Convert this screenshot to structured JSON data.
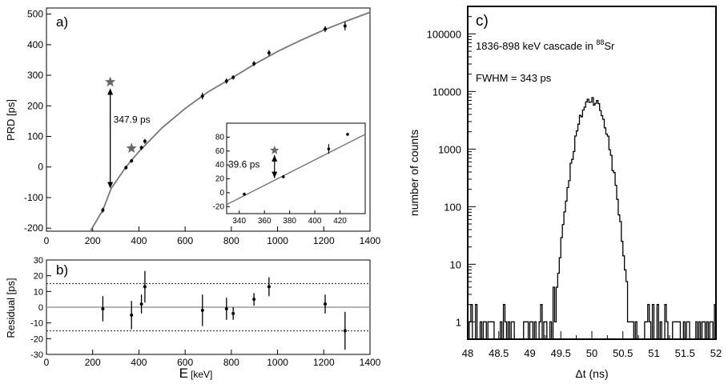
{
  "chart_data": [
    {
      "panel": "a",
      "type": "scatter",
      "panel_label": "a)",
      "ylabel": "PRD [ps]",
      "xlim": [
        0,
        1400
      ],
      "ylim": [
        -210,
        520
      ],
      "xticks": [
        0,
        200,
        400,
        600,
        800,
        1000,
        1200,
        1400
      ],
      "yticks": [
        -200,
        -100,
        0,
        100,
        200,
        300,
        400,
        500
      ],
      "points": [
        {
          "x": 244,
          "y": -141,
          "err": 8
        },
        {
          "x": 344,
          "y": -2,
          "err": 6
        },
        {
          "x": 368,
          "y": 20,
          "err": 6
        },
        {
          "x": 411,
          "y": 63,
          "err": 7
        },
        {
          "x": 426,
          "y": 84,
          "err": 8
        },
        {
          "x": 675,
          "y": 232,
          "err": 11
        },
        {
          "x": 779,
          "y": 281,
          "err": 9
        },
        {
          "x": 808,
          "y": 293,
          "err": 7
        },
        {
          "x": 898,
          "y": 338,
          "err": 8
        },
        {
          "x": 963,
          "y": 373,
          "err": 10
        },
        {
          "x": 1206,
          "y": 451,
          "err": 10
        },
        {
          "x": 1292,
          "y": 461,
          "err": 14
        }
      ],
      "stars": [
        {
          "x": 276,
          "y": 278
        },
        {
          "x": 368,
          "y": 61
        }
      ],
      "fit_curve": {
        "x": [
          190,
          215,
          244,
          280,
          344,
          400,
          500,
          600,
          700,
          800,
          900,
          1000,
          1100,
          1200,
          1300,
          1400
        ],
        "y": [
          -210,
          -178,
          -141,
          -70,
          0,
          50,
          128,
          191,
          246,
          290,
          336,
          378,
          414,
          448,
          478,
          506
        ]
      },
      "arrow": {
        "x": 276,
        "y_from": 278,
        "y_to": -70
      },
      "annotation": "347.9 ps"
    },
    {
      "panel": "a-inset",
      "type": "scatter",
      "xlim": [
        330,
        440
      ],
      "ylim": [
        -30,
        100
      ],
      "xticks": [
        340,
        360,
        380,
        400,
        420
      ],
      "yticks": [
        -20,
        0,
        20,
        40,
        60,
        80
      ],
      "points": [
        {
          "x": 344,
          "y": -2,
          "err": 2
        },
        {
          "x": 375,
          "y": 23,
          "err": 2
        },
        {
          "x": 411,
          "y": 63,
          "err": 7
        },
        {
          "x": 426,
          "y": 84,
          "err": 2
        }
      ],
      "stars": [
        {
          "x": 368,
          "y": 61
        }
      ],
      "fit_curve": {
        "x": [
          330,
          440
        ],
        "y": [
          -17,
          84
        ]
      },
      "arrow": {
        "x": 368,
        "y_from": 61,
        "y_to": 21
      },
      "annotation": "39.6 ps"
    },
    {
      "panel": "b",
      "type": "scatter",
      "panel_label": "b)",
      "ylabel": "Residual [ps]",
      "xlabel": "E",
      "xlabel_unit": "[keV]",
      "xlim": [
        0,
        1400
      ],
      "ylim": [
        -30,
        30
      ],
      "xticks": [
        0,
        200,
        400,
        600,
        800,
        1000,
        1200,
        1400
      ],
      "yticks": [
        -30,
        -20,
        -10,
        0,
        10,
        20,
        30
      ],
      "reference_lines": [
        15,
        -15
      ],
      "points": [
        {
          "x": 244,
          "y": -1,
          "err": 8
        },
        {
          "x": 368,
          "y": -5,
          "err": 9
        },
        {
          "x": 411,
          "y": 2,
          "err": 6
        },
        {
          "x": 426,
          "y": 13,
          "err": 10
        },
        {
          "x": 675,
          "y": -2,
          "err": 10
        },
        {
          "x": 779,
          "y": -1,
          "err": 7
        },
        {
          "x": 808,
          "y": -4,
          "err": 4
        },
        {
          "x": 898,
          "y": 5,
          "err": 4
        },
        {
          "x": 963,
          "y": 13,
          "err": 6
        },
        {
          "x": 1206,
          "y": 2,
          "err": 6
        },
        {
          "x": 1292,
          "y": -15,
          "err": 12
        }
      ]
    },
    {
      "panel": "c",
      "type": "histogram",
      "panel_label": "c)",
      "xlabel": "Δt (ns)",
      "ylabel": "number of counts",
      "title_prefix": "1836-898 keV cascade in ",
      "title_sup": "88",
      "title_suffix": "Sr",
      "fwhm_text": "FWHM = 343 ps",
      "xlim": [
        48,
        52
      ],
      "ylim_log": [
        0.5,
        300000
      ],
      "xticks": [
        48,
        48.5,
        49,
        49.5,
        50,
        50.5,
        51,
        51.5,
        52
      ],
      "xtick_labels": [
        "48",
        "48.5",
        "49",
        "49.5",
        "50",
        "50.5",
        "51",
        "51.5",
        "52"
      ],
      "yticks": [
        1,
        10,
        100,
        1000,
        10000,
        100000
      ],
      "ytick_labels": [
        "1",
        "10",
        "100",
        "1000",
        "10000",
        "100000"
      ],
      "peak_center": 50.0,
      "peak_counts": 7500,
      "peak_sigma": 0.1457
    }
  ]
}
